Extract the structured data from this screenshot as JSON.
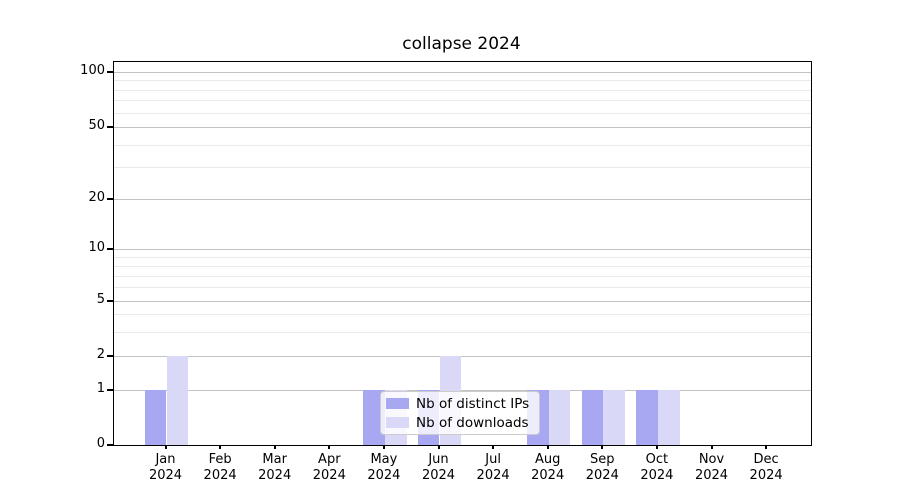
{
  "chart_data": {
    "type": "bar",
    "title": "collapse 2024",
    "categories": [
      {
        "month": "Jan",
        "year": "2024"
      },
      {
        "month": "Feb",
        "year": "2024"
      },
      {
        "month": "Mar",
        "year": "2024"
      },
      {
        "month": "Apr",
        "year": "2024"
      },
      {
        "month": "May",
        "year": "2024"
      },
      {
        "month": "Jun",
        "year": "2024"
      },
      {
        "month": "Jul",
        "year": "2024"
      },
      {
        "month": "Aug",
        "year": "2024"
      },
      {
        "month": "Sep",
        "year": "2024"
      },
      {
        "month": "Oct",
        "year": "2024"
      },
      {
        "month": "Nov",
        "year": "2024"
      },
      {
        "month": "Dec",
        "year": "2024"
      }
    ],
    "series": [
      {
        "name": "Nb of distinct IPs",
        "color": "#a7a7f2",
        "values": [
          1,
          0,
          0,
          0,
          1,
          1,
          0,
          1,
          1,
          1,
          0,
          0
        ]
      },
      {
        "name": "Nb of downloads",
        "color": "#d9d9f7",
        "values": [
          2,
          0,
          0,
          0,
          1,
          2,
          0,
          1,
          1,
          1,
          0,
          0
        ]
      }
    ],
    "y_axis": {
      "scale": "symlog",
      "major_ticks": [
        0,
        1,
        2,
        5,
        10,
        20,
        50,
        100
      ],
      "minor_ticks": [
        3,
        4,
        6,
        7,
        8,
        9,
        30,
        40,
        60,
        70,
        80,
        90
      ],
      "range": [
        0,
        120
      ]
    },
    "legend": {
      "location": "lower center inside plot",
      "entries": [
        "Nb of distinct IPs",
        "Nb of downloads"
      ]
    },
    "grid": {
      "axis": "y",
      "which": "both",
      "major_color": "#c3c3c3",
      "minor_color": "#eaeaea"
    }
  }
}
